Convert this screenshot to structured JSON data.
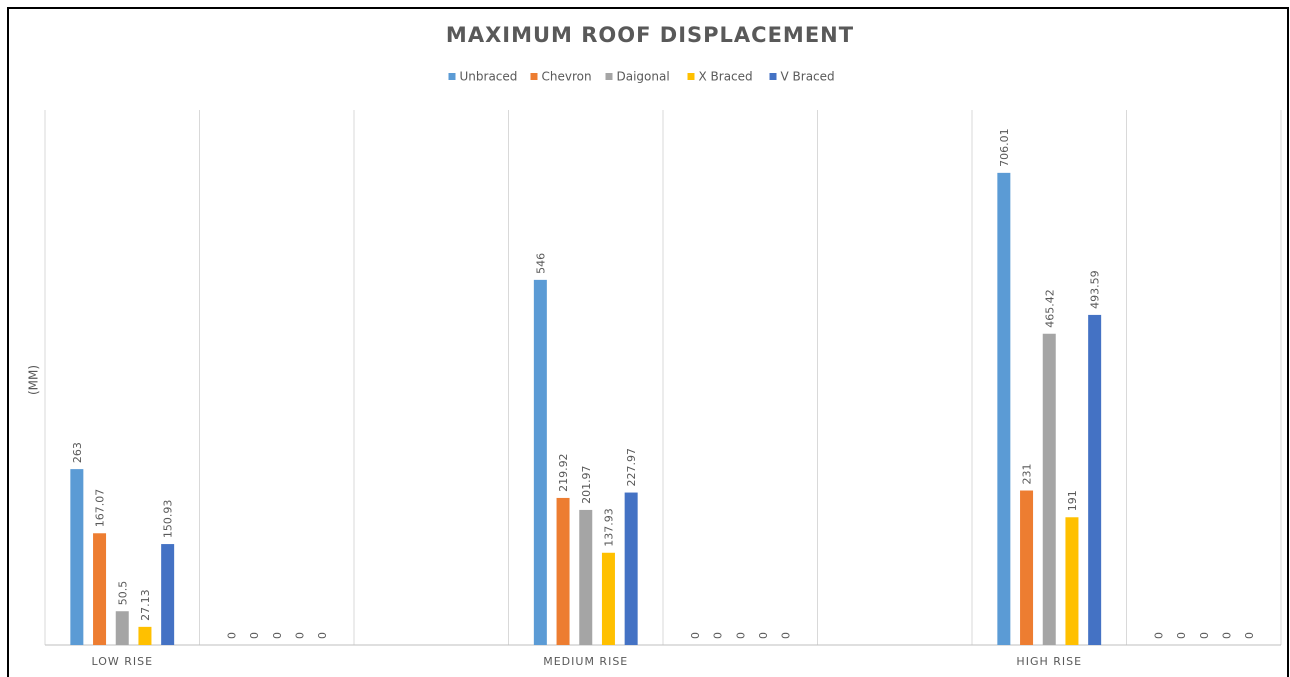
{
  "chart_data": {
    "type": "bar",
    "title": "MAXIMUM ROOF DISPLACEMENT",
    "y_label": "(MM)",
    "categories": [
      "LOW RISE",
      null,
      null,
      "MEDIUM RISE",
      null,
      null,
      "HIGH RISE",
      null
    ],
    "series": [
      {
        "name": "Unbraced",
        "color": "#5b9bd5",
        "values": [
          263,
          0,
          null,
          546,
          0,
          null,
          706.01,
          0
        ]
      },
      {
        "name": "Chevron",
        "color": "#ed7d31",
        "values": [
          167.07,
          0,
          null,
          219.92,
          0,
          null,
          231,
          0
        ]
      },
      {
        "name": "Daigonal",
        "color": "#a5a5a5",
        "values": [
          50.5,
          0,
          null,
          201.97,
          0,
          null,
          465.42,
          0
        ]
      },
      {
        "name": "X Braced",
        "color": "#ffc000",
        "values": [
          27.13,
          0,
          null,
          137.93,
          0,
          null,
          191,
          0
        ]
      },
      {
        "name": "V Braced",
        "color": "#4472c4",
        "values": [
          150.93,
          0,
          null,
          227.97,
          0,
          null,
          493.59,
          0
        ]
      }
    ],
    "ylim": [
      0,
      800
    ],
    "legend": "top",
    "grid": true
  }
}
